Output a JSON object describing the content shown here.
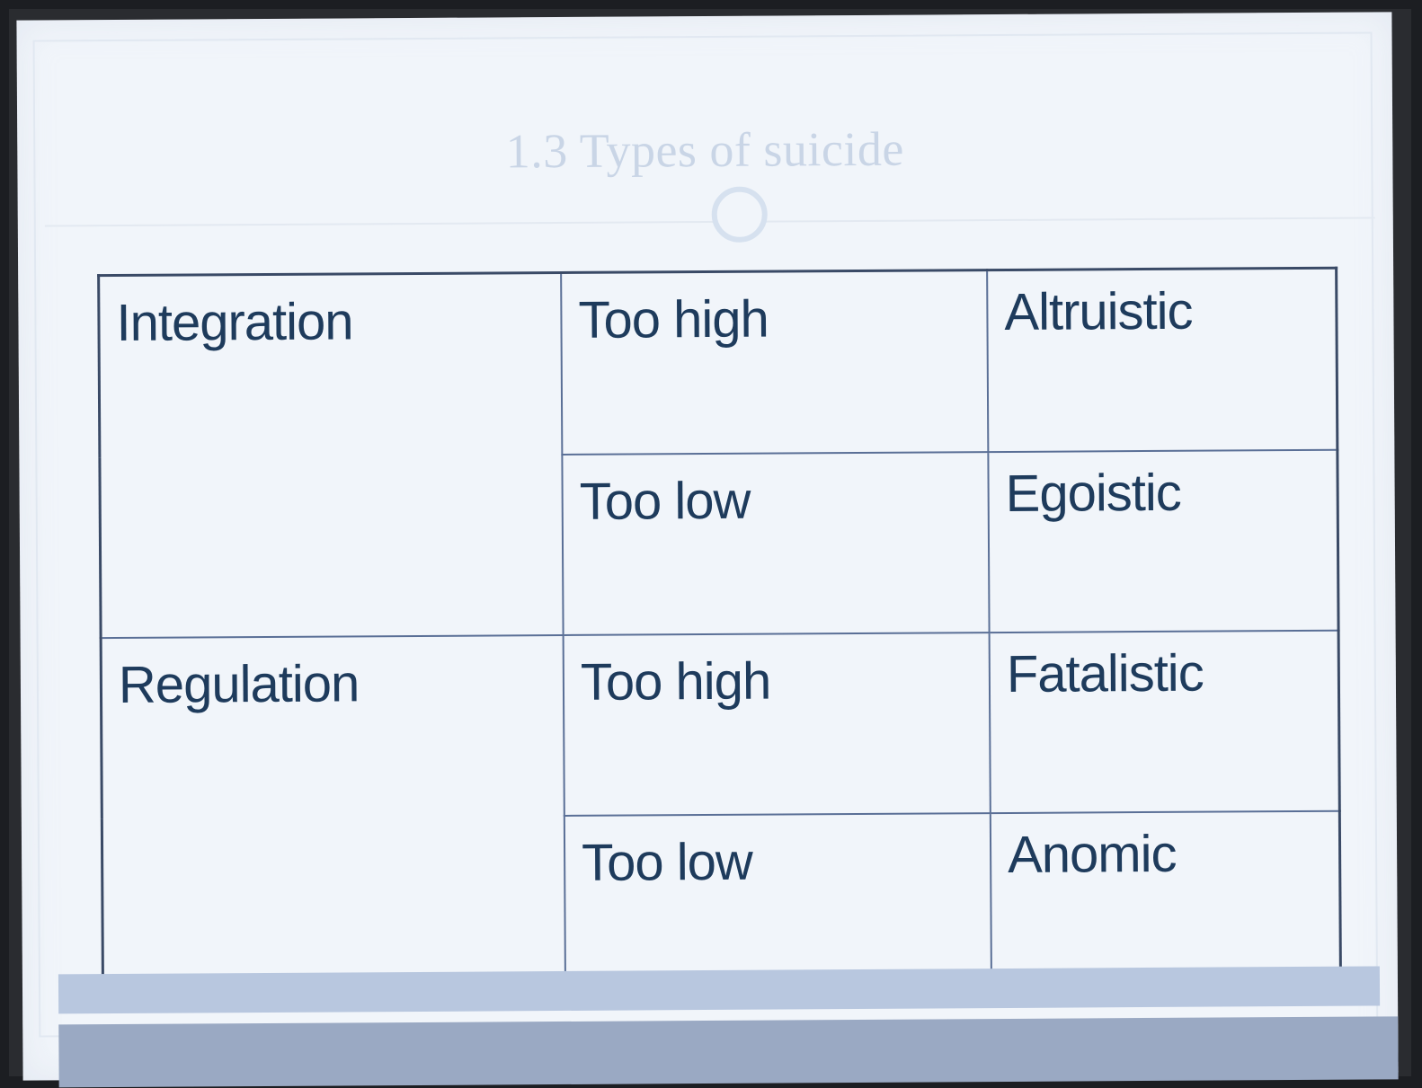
{
  "slide": {
    "title": "1.3 Types of suicide",
    "table": {
      "rows": [
        {
          "dimension": "Integration",
          "level": "Too high",
          "type": "Altruistic"
        },
        {
          "dimension": "",
          "level": "Too low",
          "type": "Egoistic"
        },
        {
          "dimension": "Regulation",
          "level": "Too high",
          "type": "Fatalistic"
        },
        {
          "dimension": "",
          "level": "Too low",
          "type": "Anomic"
        }
      ]
    }
  },
  "colors": {
    "title": "#c9d5e6",
    "text": "#1e3b5c",
    "border": "#5a6f96",
    "slide_background": "#f1f5fa",
    "footer_bar": "#b8c7df"
  },
  "icons": [
    "title-divider-circle"
  ]
}
